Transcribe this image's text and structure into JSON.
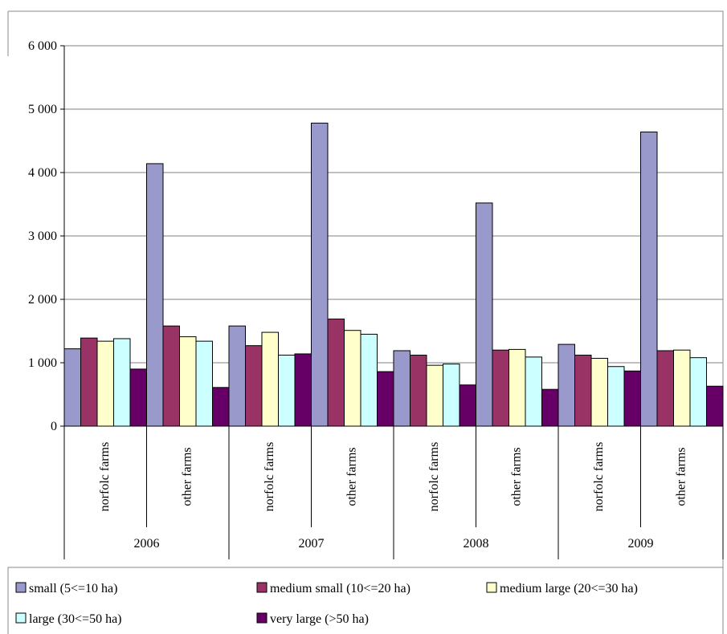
{
  "chart_data": {
    "type": "bar",
    "groups": [
      {
        "label": "2006",
        "categories": [
          "norfolc farms",
          "other farms"
        ]
      },
      {
        "label": "2007",
        "categories": [
          "norfolc farms",
          "other farms"
        ]
      },
      {
        "label": "2008",
        "categories": [
          "norfolc farms",
          "other farms"
        ]
      },
      {
        "label": "2009",
        "categories": [
          "norfolc farms",
          "other farms"
        ]
      }
    ],
    "series": [
      {
        "name": "small (5<=10 ha)",
        "color": "#9999cc",
        "values": [
          1220,
          4140,
          1580,
          4780,
          1190,
          3520,
          1290,
          4640
        ]
      },
      {
        "name": "medium small (10<=20 ha)",
        "color": "#993366",
        "values": [
          1390,
          1580,
          1270,
          1690,
          1120,
          1200,
          1120,
          1190
        ]
      },
      {
        "name": "medium large (20<=30 ha)",
        "color": "#ffffcc",
        "values": [
          1340,
          1410,
          1480,
          1510,
          960,
          1210,
          1070,
          1200
        ]
      },
      {
        "name": "large (30<=50 ha)",
        "color": "#ccffff",
        "values": [
          1380,
          1340,
          1120,
          1450,
          980,
          1090,
          940,
          1080
        ]
      },
      {
        "name": "very large (>50 ha)",
        "color": "#660066",
        "values": [
          900,
          610,
          1140,
          860,
          650,
          580,
          870,
          630
        ]
      }
    ],
    "y_ticks": [
      "0",
      "1 000",
      "2 000",
      "3 000",
      "4 000",
      "5 000",
      "6 000"
    ],
    "ylim": [
      0,
      6000
    ],
    "grid": true,
    "legend_position": "bottom"
  }
}
